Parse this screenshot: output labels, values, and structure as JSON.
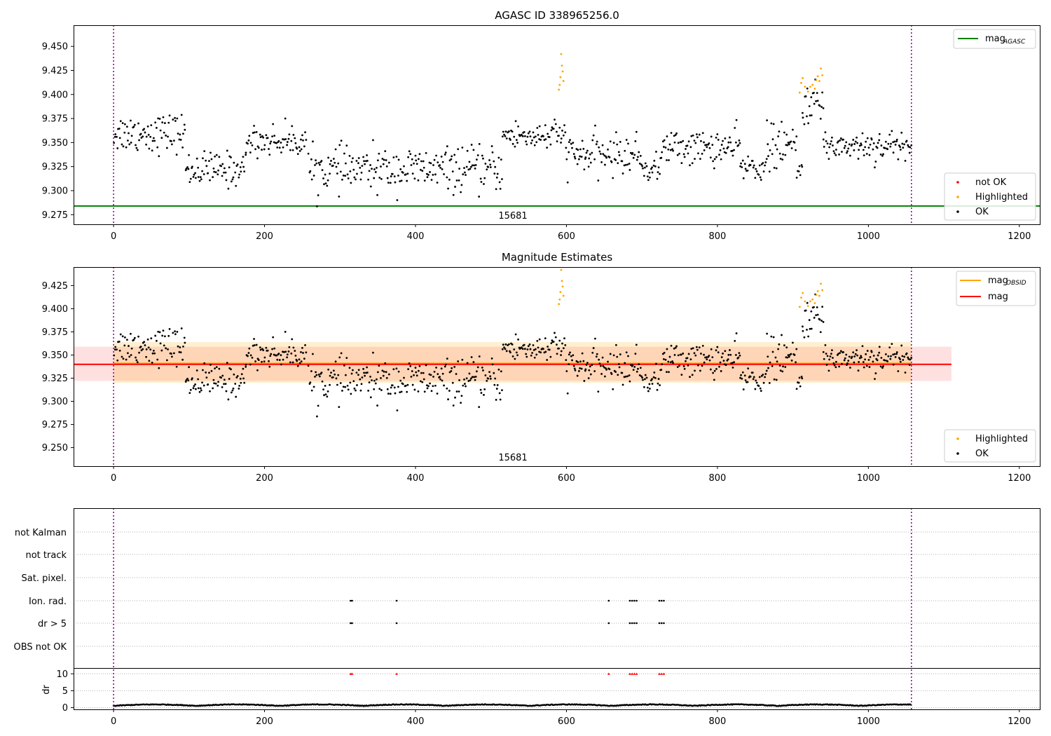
{
  "chart_data": [
    {
      "type": "scatter",
      "title": "AGASC ID 338965256.0",
      "xlim": [
        -53,
        1228
      ],
      "ylim": [
        9.265,
        9.472
      ],
      "xticks": [
        0,
        200,
        400,
        600,
        800,
        1000,
        1200
      ],
      "xtick_labels": [
        "0",
        "200",
        "400",
        "600",
        "800",
        "1000",
        "1200"
      ],
      "yticks": [
        9.275,
        9.3,
        9.325,
        9.35,
        9.375,
        9.4,
        9.425,
        9.45
      ],
      "ytick_labels": [
        "9.275",
        "9.300",
        "9.325",
        "9.350",
        "9.375",
        "9.400",
        "9.425",
        "9.450"
      ],
      "obsid_label": "15681",
      "vlines": [
        0,
        1057
      ],
      "hline": {
        "name": "mag",
        "subscript": "AGASC",
        "y": 9.284,
        "color": "#008000"
      },
      "legend_top": [
        {
          "label": "mag",
          "subscript": "AGASC",
          "color": "#008000",
          "kind": "line"
        }
      ],
      "legend_bottom": [
        {
          "label": "not OK",
          "color": "#ff0000",
          "kind": "dot"
        },
        {
          "label": "Highlighted",
          "color": "#ffa500",
          "kind": "dot"
        },
        {
          "label": "OK",
          "color": "#000000",
          "kind": "dot"
        }
      ],
      "highlighted_points": [
        [
          590,
          9.405
        ],
        [
          591,
          9.41
        ],
        [
          592,
          9.418
        ],
        [
          593,
          9.442
        ],
        [
          594,
          9.43
        ],
        [
          595,
          9.424
        ],
        [
          596,
          9.414
        ],
        [
          909,
          9.402
        ],
        [
          911,
          9.412
        ],
        [
          913,
          9.417
        ],
        [
          916,
          9.408
        ],
        [
          920,
          9.403
        ],
        [
          923,
          9.408
        ],
        [
          926,
          9.41
        ],
        [
          929,
          9.406
        ],
        [
          931,
          9.415
        ],
        [
          933,
          9.419
        ],
        [
          935,
          9.414
        ],
        [
          937,
          9.427
        ],
        [
          939,
          9.42
        ]
      ]
    },
    {
      "type": "scatter",
      "title": "Magnitude Estimates",
      "xlim": [
        -53,
        1228
      ],
      "ylim": [
        9.23,
        9.445
      ],
      "xticks": [
        0,
        200,
        400,
        600,
        800,
        1000,
        1200
      ],
      "xtick_labels": [
        "0",
        "200",
        "400",
        "600",
        "800",
        "1000",
        "1200"
      ],
      "yticks": [
        9.25,
        9.275,
        9.3,
        9.325,
        9.35,
        9.375,
        9.4,
        9.425
      ],
      "ytick_labels": [
        "9.250",
        "9.275",
        "9.300",
        "9.325",
        "9.350",
        "9.375",
        "9.400",
        "9.425"
      ],
      "obsid_label": "15681",
      "vlines": [
        0,
        1057
      ],
      "mag_obsid": {
        "y": 9.341,
        "band": [
          9.32,
          9.364
        ],
        "x_range": [
          0,
          1057
        ],
        "color": "#ffa500"
      },
      "mag": {
        "y": 9.34,
        "band": [
          9.322,
          9.359
        ],
        "x_range": [
          -53,
          1110
        ],
        "color": "#ff0000"
      },
      "legend_top": [
        {
          "label": "mag",
          "subscript": "OBSID",
          "color": "#ffa500",
          "kind": "line"
        },
        {
          "label": "mag",
          "subscript": "",
          "color": "#ff0000",
          "kind": "line"
        }
      ],
      "legend_bottom": [
        {
          "label": "Highlighted",
          "color": "#ffa500",
          "kind": "dot"
        },
        {
          "label": "OK",
          "color": "#000000",
          "kind": "dot"
        }
      ]
    },
    {
      "type": "scatter",
      "title": "",
      "xlim": [
        -53,
        1228
      ],
      "xticks": [
        0,
        200,
        400,
        600,
        800,
        1000,
        1200
      ],
      "xtick_labels": [
        "0",
        "200",
        "400",
        "600",
        "800",
        "1000",
        "1200"
      ],
      "vlines": [
        0,
        1057
      ],
      "flag_rows": [
        "not Kalman",
        "not track",
        "Sat. pixel.",
        "Ion. rad.",
        "dr > 5",
        "OBS not OK"
      ],
      "flag_points": {
        "Ion. rad.": [
          314,
          316,
          375,
          656,
          684,
          687,
          690,
          693,
          723,
          726,
          729
        ],
        "dr > 5": [
          314,
          316,
          375,
          656,
          684,
          687,
          690,
          693,
          723,
          726,
          729
        ]
      },
      "dr_ylabel": "dr",
      "dr_ylim": [
        -0.5,
        11.5
      ],
      "dr_yticks": [
        0,
        5,
        10
      ],
      "dr_ytick_labels": [
        "0",
        "5",
        "10"
      ],
      "dr_clip_markers": [
        314,
        316,
        375,
        656,
        684,
        687,
        690,
        693,
        723,
        726,
        729
      ]
    }
  ]
}
